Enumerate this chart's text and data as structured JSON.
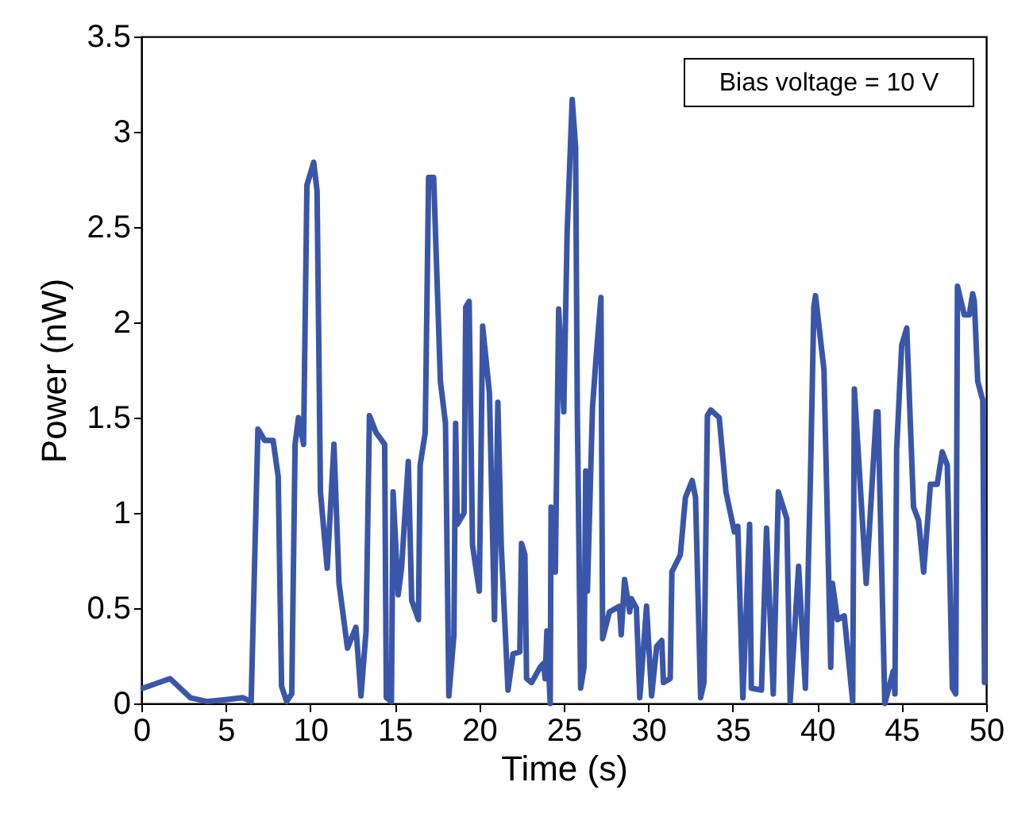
{
  "chart_data": {
    "type": "line",
    "xlabel": "Time (s)",
    "ylabel": "Power (nW)",
    "annotations": [
      "Bias voltage = 10 V"
    ],
    "xlim": [
      0,
      50
    ],
    "xticks": [
      0,
      5,
      10,
      15,
      20,
      25,
      30,
      35,
      40,
      45,
      50
    ],
    "ylim": [
      0,
      3.5
    ],
    "yticks": [
      0,
      0.5,
      1,
      1.5,
      2,
      2.5,
      3,
      3.5
    ],
    "grid": false,
    "line_style": "solid",
    "marker": "none",
    "series": [
      {
        "color": "#3a56a9",
        "x": [
          0.1,
          1.7,
          2.9,
          3.9,
          5.0,
          6.0,
          6.5,
          6.9,
          7.3,
          7.8,
          8.1,
          8.3,
          8.6,
          8.9,
          9.1,
          9.3,
          9.6,
          9.8,
          10.2,
          10.4,
          10.6,
          11.0,
          11.4,
          11.7,
          12.2,
          12.7,
          13.0,
          13.3,
          13.5,
          13.9,
          14.4,
          14.5,
          14.8,
          14.9,
          15.2,
          15.4,
          15.8,
          16.0,
          16.4,
          16.5,
          16.8,
          17.0,
          17.3,
          17.7,
          18.0,
          18.2,
          18.5,
          18.6,
          18.7,
          19.1,
          19.2,
          19.4,
          19.6,
          20.0,
          20.2,
          20.6,
          20.9,
          21.1,
          21.3,
          21.7,
          22.0,
          22.4,
          22.5,
          22.7,
          22.8,
          23.1,
          23.6,
          23.8,
          23.9,
          24.0,
          24.2,
          24.25,
          24.5,
          24.7,
          25.0,
          25.2,
          25.5,
          25.7,
          25.8,
          26.0,
          26.2,
          26.3,
          26.4,
          26.7,
          26.9,
          27.2,
          27.3,
          27.7,
          28.3,
          28.4,
          28.6,
          28.9,
          29.0,
          29.3,
          29.5,
          29.9,
          30.2,
          30.5,
          30.8,
          30.9,
          31.3,
          31.4,
          31.9,
          32.2,
          32.6,
          32.8,
          33.1,
          33.3,
          33.5,
          33.7,
          34.2,
          34.6,
          35.1,
          35.3,
          35.6,
          36.0,
          36.1,
          36.7,
          37.0,
          37.4,
          37.7,
          38.2,
          38.4,
          38.9,
          39.3,
          39.6,
          39.8,
          39.9,
          40.4,
          40.8,
          40.9,
          41.2,
          41.6,
          42.1,
          42.2,
          42.9,
          43.5,
          43.6,
          44.0,
          44.5,
          44.6,
          44.7,
          45.0,
          45.3,
          45.7,
          46.0,
          46.3,
          46.7,
          47.1,
          47.4,
          47.7,
          48.0,
          48.2,
          48.3,
          48.7,
          49.0,
          49.2,
          49.3,
          49.5,
          49.8,
          49.9
        ],
        "values": [
          0.08,
          0.13,
          0.03,
          0.01,
          0.02,
          0.03,
          0.01,
          1.44,
          1.38,
          1.38,
          1.19,
          0.09,
          0.01,
          0.05,
          1.36,
          1.5,
          1.36,
          2.72,
          2.84,
          2.69,
          1.11,
          0.71,
          1.36,
          0.63,
          0.29,
          0.4,
          0.04,
          0.38,
          1.51,
          1.42,
          1.36,
          0.03,
          0.01,
          1.11,
          0.57,
          0.71,
          1.27,
          0.54,
          0.44,
          1.25,
          1.42,
          2.76,
          2.76,
          1.69,
          1.47,
          0.04,
          0.36,
          1.47,
          0.94,
          1.0,
          2.08,
          2.11,
          0.83,
          0.59,
          1.98,
          1.63,
          0.44,
          1.58,
          0.83,
          0.07,
          0.26,
          0.27,
          0.84,
          0.78,
          0.13,
          0.11,
          0.19,
          0.21,
          0.13,
          0.38,
          0.0,
          1.03,
          0.69,
          2.07,
          1.53,
          2.47,
          3.17,
          2.92,
          1.55,
          0.08,
          0.19,
          1.22,
          0.59,
          1.55,
          1.8,
          2.13,
          0.34,
          0.48,
          0.51,
          0.36,
          0.65,
          0.48,
          0.55,
          0.5,
          0.03,
          0.51,
          0.04,
          0.3,
          0.33,
          0.11,
          0.13,
          0.69,
          0.78,
          1.08,
          1.17,
          1.08,
          0.03,
          0.11,
          1.51,
          1.54,
          1.5,
          1.11,
          0.9,
          0.93,
          0.03,
          0.94,
          0.08,
          0.07,
          0.92,
          0.05,
          1.11,
          0.97,
          0.01,
          0.72,
          0.08,
          1.19,
          2.08,
          2.14,
          1.75,
          0.19,
          0.63,
          0.44,
          0.46,
          0.01,
          1.65,
          0.63,
          1.53,
          1.53,
          0.0,
          0.17,
          0.05,
          1.33,
          1.88,
          1.97,
          1.03,
          0.96,
          0.69,
          1.15,
          1.15,
          1.32,
          1.25,
          0.08,
          0.05,
          2.19,
          2.04,
          2.04,
          2.15,
          2.11,
          1.69,
          1.59,
          0.11
        ]
      }
    ]
  }
}
